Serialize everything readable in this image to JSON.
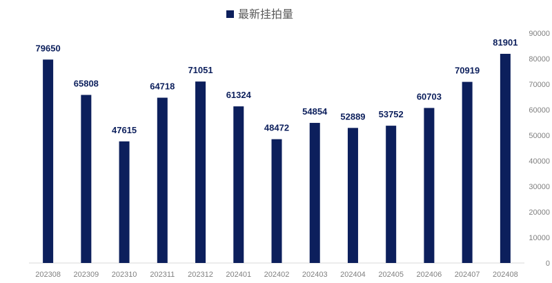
{
  "chart_data": {
    "type": "bar",
    "categories": [
      "202308",
      "202309",
      "202310",
      "202311",
      "202312",
      "202401",
      "202402",
      "202403",
      "202404",
      "202405",
      "202406",
      "202407",
      "202408"
    ],
    "series": [
      {
        "name": "最新挂拍量",
        "values": [
          79650,
          65808,
          47615,
          64718,
          71051,
          61324,
          48472,
          54854,
          52889,
          53752,
          60703,
          70919,
          81901
        ],
        "color": "#0c1f5c"
      }
    ],
    "data_labels": [
      "79650",
      "65808",
      "47615",
      "64718",
      "71051",
      "61324",
      "48472",
      "54854",
      "52889",
      "53752",
      "60703",
      "70919",
      "81901"
    ],
    "yaxis": {
      "position": "right",
      "ylim": [
        0,
        90000
      ],
      "ticks": [
        0,
        10000,
        20000,
        30000,
        40000,
        50000,
        60000,
        70000,
        80000,
        90000
      ],
      "tick_labels": [
        "0",
        "10000",
        "20000",
        "30000",
        "40000",
        "50000",
        "60000",
        "70000",
        "80000",
        "90000"
      ]
    },
    "legend": {
      "placement": "top-center",
      "label": "最新挂拍量"
    },
    "grid": false,
    "title": "",
    "xlabel": "",
    "ylabel": "",
    "colors": {
      "bar": "#0c1f5c",
      "label": "#0c1f5c",
      "tick": "#7f7f7f",
      "axis": "#d9d9d9",
      "legend_text": "#595959"
    }
  }
}
